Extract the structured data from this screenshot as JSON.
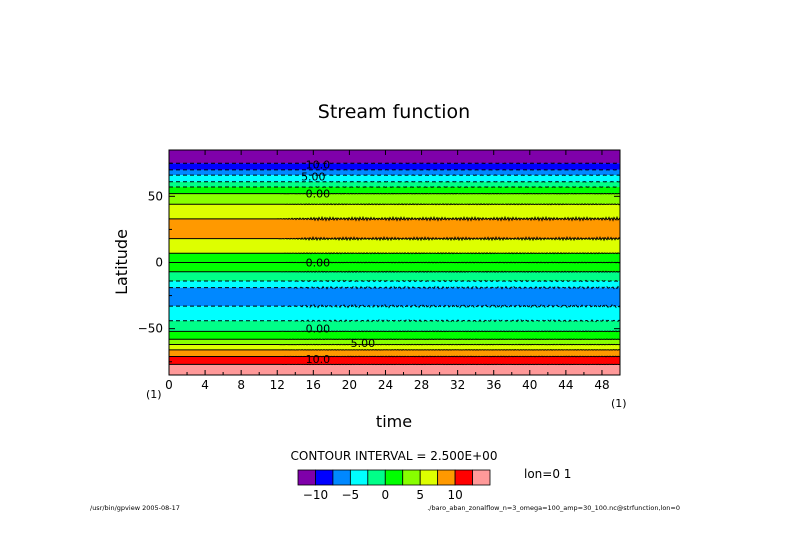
{
  "chart_data": {
    "type": "heatmap",
    "title": "Stream function",
    "xlabel": "time",
    "ylabel": "Latitude",
    "x_unit": "(1)",
    "y_unit": "(1)",
    "xlim": [
      0,
      50
    ],
    "ylim": [
      -85,
      85
    ],
    "x_ticks": [
      0,
      4,
      8,
      12,
      16,
      20,
      24,
      28,
      32,
      36,
      40,
      44,
      48
    ],
    "y_ticks": [
      50,
      0,
      -50
    ],
    "y_tick_labels": [
      "50",
      "0",
      "−50"
    ],
    "contour_interval_text": "CONTOUR INTERVAL = 2.500E+00",
    "slice_label": "lon=0 1",
    "contour_labels": [
      {
        "text": "10.0",
        "lat": 74,
        "time": 16.5
      },
      {
        "text": "5.00",
        "lat": 65,
        "time": 16.0
      },
      {
        "text": "0.00",
        "lat": 52,
        "time": 16.5
      },
      {
        "text": "0.00",
        "lat": 0,
        "time": 16.5
      },
      {
        "text": "0.00",
        "lat": -50,
        "time": 16.5
      },
      {
        "text": "5.00",
        "lat": -61,
        "time": 21.5
      },
      {
        "text": "10.0",
        "lat": -73,
        "time": 16.5
      }
    ],
    "bands": [
      {
        "lat_top": 85,
        "lat_bottom": 75,
        "color": "#7f00aa"
      },
      {
        "lat_top": 75,
        "lat_bottom": 70,
        "color": "#0000ff"
      },
      {
        "lat_top": 70,
        "lat_bottom": 66,
        "color": "#0088ff"
      },
      {
        "lat_top": 66,
        "lat_bottom": 61,
        "color": "#00ffff"
      },
      {
        "lat_top": 61,
        "lat_bottom": 57,
        "color": "#00ff88"
      },
      {
        "lat_top": 57,
        "lat_bottom": 52,
        "color": "#00ff00"
      },
      {
        "lat_top": 52,
        "lat_bottom": 44,
        "color": "#88ff00"
      },
      {
        "lat_top": 44,
        "lat_bottom": 33,
        "color": "#ddff00"
      },
      {
        "lat_top": 33,
        "lat_bottom": 18,
        "color": "#ff9900"
      },
      {
        "lat_top": 18,
        "lat_bottom": 7,
        "color": "#ddff00"
      },
      {
        "lat_top": 7,
        "lat_bottom": -7,
        "color": "#00ff00"
      },
      {
        "lat_top": -7,
        "lat_bottom": -14,
        "color": "#00ff88"
      },
      {
        "lat_top": -14,
        "lat_bottom": -19,
        "color": "#00ffff"
      },
      {
        "lat_top": -19,
        "lat_bottom": -33,
        "color": "#0088ff"
      },
      {
        "lat_top": -33,
        "lat_bottom": -44,
        "color": "#00ffff"
      },
      {
        "lat_top": -44,
        "lat_bottom": -52,
        "color": "#00ff88"
      },
      {
        "lat_top": -52,
        "lat_bottom": -58,
        "color": "#00ff00"
      },
      {
        "lat_top": -58,
        "lat_bottom": -62,
        "color": "#88ff00"
      },
      {
        "lat_top": -62,
        "lat_bottom": -66,
        "color": "#ddff00"
      },
      {
        "lat_top": -66,
        "lat_bottom": -71,
        "color": "#ff9900"
      },
      {
        "lat_top": -71,
        "lat_bottom": -77,
        "color": "#ff0000"
      },
      {
        "lat_top": -77,
        "lat_bottom": -85,
        "color": "#ff9999"
      }
    ],
    "contours": [
      {
        "lat": 75,
        "dashed": true,
        "noise": 0.15
      },
      {
        "lat": 70,
        "dashed": true,
        "noise": 0.15
      },
      {
        "lat": 66,
        "dashed": true,
        "noise": 0.2
      },
      {
        "lat": 61,
        "dashed": true,
        "noise": 0.2
      },
      {
        "lat": 57,
        "dashed": true,
        "noise": 0.25
      },
      {
        "lat": 52,
        "dashed": false,
        "noise": 0.3
      },
      {
        "lat": 44,
        "dashed": false,
        "noise": 0.5
      },
      {
        "lat": 33,
        "dashed": false,
        "noise": 1.6
      },
      {
        "lat": 18,
        "dashed": false,
        "noise": 1.4
      },
      {
        "lat": 7,
        "dashed": false,
        "noise": 0.5
      },
      {
        "lat": 0,
        "dashed": false,
        "noise": 0.3
      },
      {
        "lat": -7,
        "dashed": false,
        "noise": 0.5
      },
      {
        "lat": -14,
        "dashed": true,
        "noise": 0.6
      },
      {
        "lat": -19,
        "dashed": true,
        "noise": 1.0
      },
      {
        "lat": -33,
        "dashed": true,
        "noise": 1.3
      },
      {
        "lat": -44,
        "dashed": true,
        "noise": 0.8
      },
      {
        "lat": -52,
        "dashed": false,
        "noise": 0.4
      },
      {
        "lat": -58,
        "dashed": false,
        "noise": 0.3
      },
      {
        "lat": -62,
        "dashed": false,
        "noise": 0.3
      },
      {
        "lat": -66,
        "dashed": false,
        "noise": 0.3
      },
      {
        "lat": -71,
        "dashed": false,
        "noise": 0.3
      },
      {
        "lat": -77,
        "dashed": false,
        "noise": 0.2
      }
    ],
    "colorbar": {
      "colors": [
        "#7f00aa",
        "#0000ff",
        "#0088ff",
        "#00ffff",
        "#00ff88",
        "#00ff00",
        "#88ff00",
        "#ddff00",
        "#ff9900",
        "#ff0000",
        "#ff9999"
      ],
      "boundaries": [
        -12.5,
        -10,
        -7.5,
        -5,
        -2.5,
        0,
        2.5,
        5,
        7.5,
        10,
        12.5,
        15
      ],
      "tick_values": [
        -10,
        -5,
        0,
        5,
        10
      ],
      "tick_labels": [
        "−10",
        "−5",
        "0",
        "5",
        "10"
      ]
    }
  },
  "footer": {
    "left": "/usr/bin/gpview  2005-08-17",
    "right": "./baro_aban_zonalflow_n=3_omega=100_amp=30_100.nc@strfunction,lon=0"
  }
}
